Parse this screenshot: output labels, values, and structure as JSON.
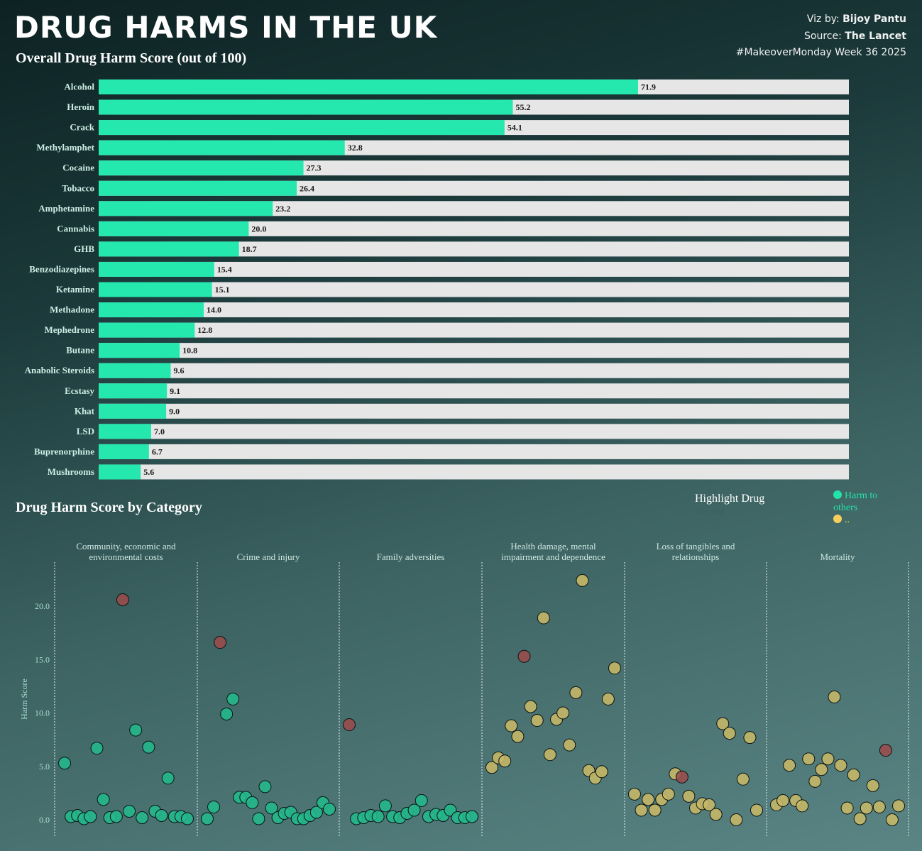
{
  "header": {
    "title": "DRUG HARMS IN THE UK",
    "viz_by_label": "Viz by:",
    "viz_by_name": "Bijoy Pantu",
    "source_label": "Source:",
    "source_name": "The Lancet",
    "hashtag": "#MakeoverMonday Week 36 2025"
  },
  "bar_section_title": "Overall Drug Harm Score (out of 100)",
  "category_section_title": "Drug Harm Score by Category",
  "highlight": {
    "label": "Highlight Drug",
    "value": "Alcohol"
  },
  "legend": {
    "items": [
      {
        "label": "Harm to others",
        "color": "#24e3a9"
      },
      {
        "label": "..",
        "color": "#f6cf5c"
      }
    ]
  },
  "colors": {
    "bar": "#24e8ae",
    "track": "#e6e6e6",
    "others_dot": "#23b88c",
    "users_dot": "#c7b867",
    "highlight_dot": "#9b4c4c"
  },
  "chart_data": [
    {
      "type": "bar",
      "orientation": "horizontal",
      "title": "Overall Drug Harm Score (out of 100)",
      "xlim": [
        0,
        100
      ],
      "categories": [
        "Alcohol",
        "Heroin",
        "Crack",
        "Methylamphet",
        "Cocaine",
        "Tobacco",
        "Amphetamine",
        "Cannabis",
        "GHB",
        "Benzodiazepines",
        "Ketamine",
        "Methadone",
        "Mephedrone",
        "Butane",
        "Anabolic Steroids",
        "Ecstasy",
        "Khat",
        "LSD",
        "Buprenorphine",
        "Mushrooms"
      ],
      "values": [
        71.9,
        55.2,
        54.1,
        32.8,
        27.3,
        26.4,
        23.2,
        20.0,
        18.7,
        15.4,
        15.1,
        14.0,
        12.8,
        10.8,
        9.6,
        9.1,
        9.0,
        7.0,
        6.7,
        5.6
      ],
      "labels": [
        "71.9",
        "55.2",
        "54.1",
        "32.8",
        "27.3",
        "26.4",
        "23.2",
        "20.0",
        "18.7",
        "15.4",
        "15.1",
        "14.0",
        "12.8",
        "10.8",
        "9.6",
        "9.1",
        "9.0",
        "7.0",
        "6.7",
        "5.6"
      ]
    },
    {
      "type": "scatter",
      "title": "Drug Harm Score by Category",
      "ylabel": "Harm Score",
      "ylim": [
        -1.5,
        24
      ],
      "yticks": [
        "0.0",
        "5.0",
        "10.0",
        "15.0",
        "20.0"
      ],
      "ytick_values": [
        0,
        5,
        10,
        15,
        20
      ],
      "panels": [
        {
          "name": "Community, economic and environmental costs",
          "series": "others",
          "values": [
            5.3,
            0.3,
            0.4,
            0.1,
            0.3,
            6.7,
            1.9,
            0.2,
            0.3,
            20.6,
            0.8,
            8.4,
            0.2,
            6.8,
            0.8,
            0.4,
            3.9,
            0.3,
            0.3,
            0.1
          ],
          "highlight_index": 9
        },
        {
          "name": "Crime and injury",
          "series": "others",
          "values": [
            0.1,
            1.2,
            16.6,
            9.9,
            11.3,
            2.1,
            2.1,
            1.6,
            0.1,
            3.1,
            1.1,
            0.2,
            0.6,
            0.7,
            0.1,
            0.1,
            0.4,
            0.7,
            1.6,
            1.0
          ],
          "highlight_index": 2
        },
        {
          "name": "Family adversities",
          "series": "others",
          "values": [
            8.9,
            0.1,
            0.2,
            0.4,
            0.3,
            1.3,
            0.3,
            0.2,
            0.6,
            0.9,
            1.8,
            0.3,
            0.5,
            0.4,
            0.9,
            0.2,
            0.2,
            0.3
          ],
          "highlight_index": 0
        },
        {
          "name": "Health damage, mental impairment and dependence",
          "series": "users",
          "values": [
            4.9,
            5.8,
            5.5,
            8.8,
            7.8,
            15.3,
            10.6,
            9.3,
            18.9,
            6.1,
            9.4,
            10.0,
            7.0,
            11.9,
            22.4,
            4.6,
            3.9,
            4.5,
            11.3,
            14.2
          ],
          "highlight_index": 5
        },
        {
          "name": "Loss of tangibles and relationships",
          "series": "users",
          "values": [
            2.4,
            0.9,
            1.9,
            0.9,
            1.9,
            2.4,
            4.3,
            4.0,
            2.2,
            1.1,
            1.5,
            1.4,
            0.5,
            9.0,
            8.1,
            0.0,
            3.8,
            7.7,
            0.9
          ],
          "highlight_index": 7
        },
        {
          "name": "Mortality",
          "series": "users",
          "values": [
            1.4,
            1.8,
            5.1,
            1.8,
            1.3,
            5.7,
            3.6,
            4.7,
            5.7,
            11.5,
            5.1,
            1.1,
            4.2,
            0.1,
            1.1,
            3.2,
            1.2,
            6.5,
            0.0,
            1.3
          ],
          "highlight_index": 17
        }
      ]
    }
  ]
}
